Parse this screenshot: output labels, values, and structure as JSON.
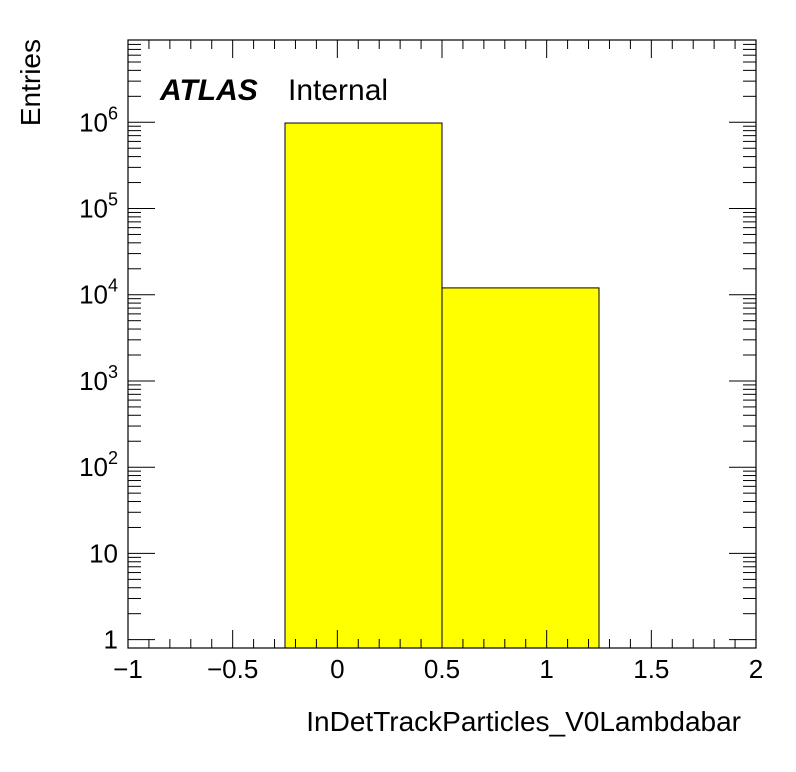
{
  "chart_data": {
    "type": "bar",
    "histogram": true,
    "bin_edges": [
      -1,
      -0.25,
      0.5,
      1.25,
      2
    ],
    "values": [
      0,
      980000,
      12000,
      0
    ],
    "fill_color": "#ffff00",
    "edge_color": "#000000",
    "xlabel": "InDetTrackParticles_V0Lambdabar",
    "ylabel": "Entries",
    "xlim": [
      -1,
      2
    ],
    "ylim": [
      0.8,
      9000000
    ],
    "y_scale": "log",
    "x_ticks": [
      {
        "value": -1,
        "label": "−1"
      },
      {
        "value": -0.5,
        "label": "−0.5"
      },
      {
        "value": 0,
        "label": "0"
      },
      {
        "value": 0.5,
        "label": "0.5"
      },
      {
        "value": 1,
        "label": "1"
      },
      {
        "value": 1.5,
        "label": "1.5"
      },
      {
        "value": 2,
        "label": "2"
      }
    ],
    "y_ticks": [
      {
        "value": 1,
        "base": "1",
        "exp": ""
      },
      {
        "value": 10,
        "base": "10",
        "exp": ""
      },
      {
        "value": 100,
        "base": "10",
        "exp": "2"
      },
      {
        "value": 1000,
        "base": "10",
        "exp": "3"
      },
      {
        "value": 10000,
        "base": "10",
        "exp": "4"
      },
      {
        "value": 100000,
        "base": "10",
        "exp": "5"
      },
      {
        "value": 1000000,
        "base": "10",
        "exp": "6"
      }
    ],
    "grid": false,
    "annotation": {
      "experiment": "ATLAS",
      "status": "Internal"
    }
  }
}
